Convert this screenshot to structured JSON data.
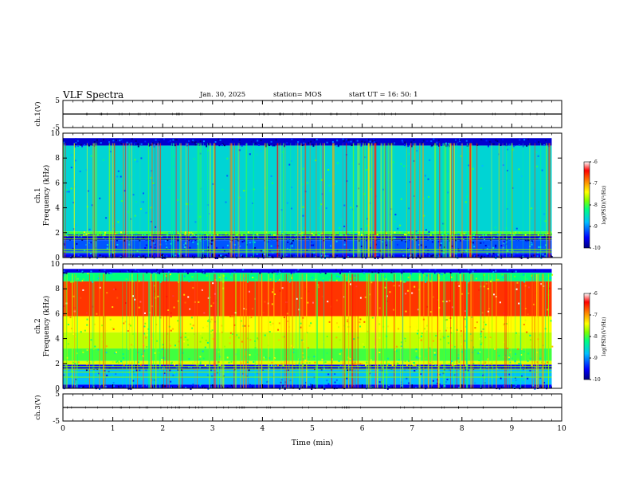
{
  "header": {
    "title": "VLF Spectra",
    "date": "Jan. 30, 2025",
    "station": "station= MOS",
    "start": "start  UT =  16: 50: 1"
  },
  "chart_data": [
    {
      "type": "line",
      "panel": "ch1-waveform",
      "ylabel": "ch.1(V)",
      "ylim": [
        -5,
        5
      ],
      "yticks": [
        "5",
        "-5"
      ],
      "x": [
        0,
        10
      ],
      "values": [
        0,
        0
      ]
    },
    {
      "type": "heatmap",
      "panel": "ch1-spectrogram",
      "ylabel": "ch.1\nFrequency (kHz)",
      "xlim": [
        0,
        10
      ],
      "ylim": [
        0,
        10
      ],
      "yticks": [
        "0",
        "2",
        "4",
        "6",
        "8",
        "10"
      ],
      "data_xrange": [
        0,
        9.8
      ],
      "data_yrange": [
        0,
        9.6
      ],
      "bands": [
        {
          "y": [
            9.0,
            9.6
          ],
          "level": -9.7
        },
        {
          "y": [
            2.1,
            9.0
          ],
          "level": -8.6
        },
        {
          "y": [
            1.85,
            2.1
          ],
          "level": -8.0
        },
        {
          "y": [
            1.4,
            1.85
          ],
          "level": -9.6
        },
        {
          "y": [
            0.3,
            1.4
          ],
          "level": -9.2
        },
        {
          "y": [
            0.0,
            0.3
          ],
          "level": -9.5
        }
      ],
      "lines_khz": [
        1.75,
        1.5,
        0.65,
        0.45
      ],
      "colorbar": {
        "label": "log(PSD)(V²/Hz)",
        "range": [
          -10,
          -6
        ],
        "ticks": [
          "-6",
          "-7",
          "-8",
          "-9",
          "-10"
        ]
      }
    },
    {
      "type": "heatmap",
      "panel": "ch2-spectrogram",
      "ylabel": "ch.2\nFrequency (kHz)",
      "xlim": [
        0,
        10
      ],
      "ylim": [
        0,
        10
      ],
      "yticks": [
        "0",
        "2",
        "4",
        "6",
        "8",
        "10"
      ],
      "data_xrange": [
        0,
        9.8
      ],
      "data_yrange": [
        0,
        9.6
      ],
      "bands": [
        {
          "y": [
            9.3,
            9.6
          ],
          "level": -9.6
        },
        {
          "y": [
            8.6,
            9.3
          ],
          "level": -8.2
        },
        {
          "y": [
            5.8,
            8.6
          ],
          "level": -6.6
        },
        {
          "y": [
            4.5,
            5.8
          ],
          "level": -7.4
        },
        {
          "y": [
            3.2,
            4.5
          ],
          "level": -7.6
        },
        {
          "y": [
            2.2,
            3.2
          ],
          "level": -8.0
        },
        {
          "y": [
            1.9,
            2.2
          ],
          "level": -7.5
        },
        {
          "y": [
            1.5,
            1.9
          ],
          "level": -9.5
        },
        {
          "y": [
            0.3,
            1.5
          ],
          "level": -8.8
        },
        {
          "y": [
            0.0,
            0.3
          ],
          "level": -9.5
        }
      ],
      "lines_khz": [
        1.75,
        1.55,
        1.3,
        0.9
      ],
      "colorbar": {
        "label": "log(PSD)(V²/Hz)",
        "range": [
          -10,
          -6
        ],
        "ticks": [
          "-6",
          "-7",
          "-8",
          "-9",
          "-10"
        ]
      }
    },
    {
      "type": "line",
      "panel": "ch3-waveform",
      "ylabel": "ch.3(V)",
      "ylim": [
        -5,
        5
      ],
      "yticks": [
        "5",
        "-5"
      ],
      "x": [
        0,
        10
      ],
      "values": [
        0,
        0
      ]
    }
  ],
  "xaxis": {
    "label": "Time (min)",
    "ticks": [
      "0",
      "1",
      "2",
      "3",
      "4",
      "5",
      "6",
      "7",
      "8",
      "9",
      "10"
    ]
  },
  "colors": {
    "scale": [
      "#00007f",
      "#0000ff",
      "#00bfff",
      "#00ff7f",
      "#7fff00",
      "#ffff00",
      "#ff7f00",
      "#ff0000",
      "#ffffff"
    ]
  }
}
